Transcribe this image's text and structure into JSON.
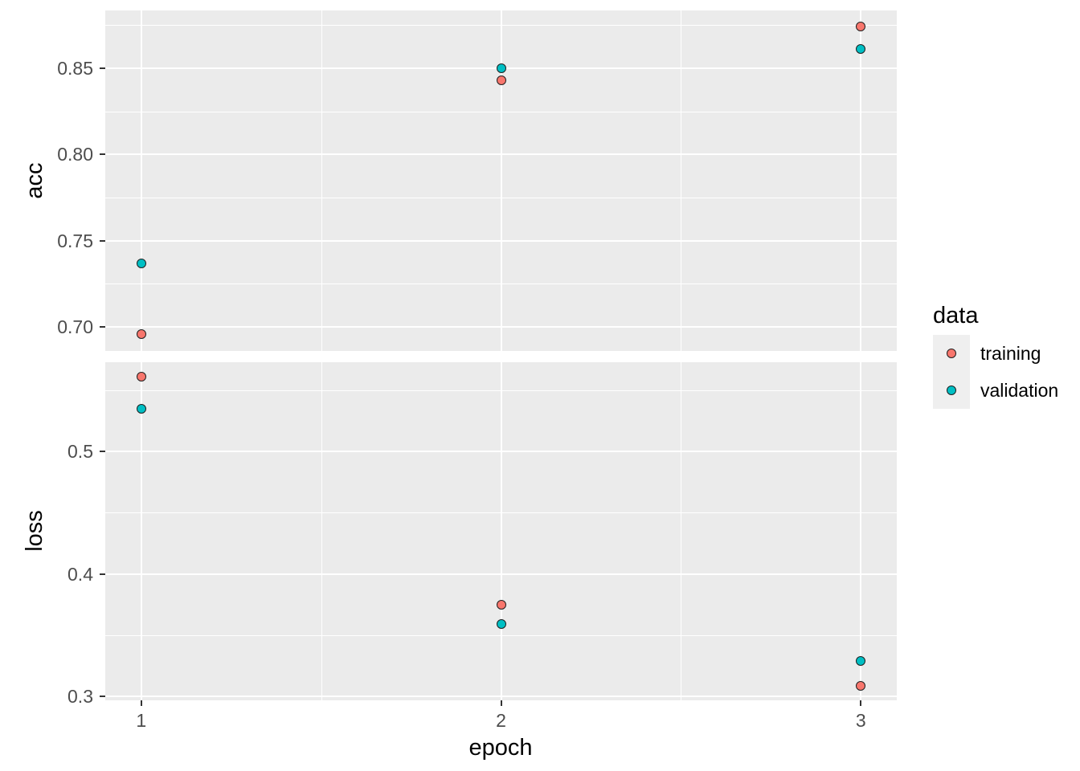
{
  "figure": {
    "background": "#ffffff",
    "panel_background": "#EBEBEB",
    "grid_color": "#FFFFFF",
    "axis_text_color": "#4D4D4D",
    "axis_title_color": "#000000",
    "tick_mark_color": "#333333",
    "point_outline_color": "#1f1f1f",
    "legend_key_background": "#EFEFEF"
  },
  "chart_data": {
    "type": "scatter",
    "title": "",
    "xlabel": "epoch",
    "x": [
      1,
      2,
      3
    ],
    "x_tick_labels": [
      "1",
      "2",
      "3"
    ],
    "xlim": [
      0.9,
      3.1
    ],
    "x_minor_ticks": [
      1.5,
      2.5
    ],
    "grid": true,
    "legend": {
      "title": "data",
      "position": "right",
      "entries": [
        {
          "label": "training",
          "color": "#F8766D"
        },
        {
          "label": "validation",
          "color": "#00BFC4"
        }
      ]
    },
    "facets": [
      {
        "label": "acc",
        "ylim": [
          0.686,
          0.8835
        ],
        "y_ticks": [
          0.7,
          0.75,
          0.8,
          0.85
        ],
        "y_tick_labels": [
          "0.70",
          "0.75",
          "0.80",
          "0.85"
        ],
        "y_minor_ticks": [
          0.725,
          0.775,
          0.825,
          0.875
        ],
        "series": [
          {
            "name": "training",
            "values": [
              0.696,
              0.843,
              0.874
            ]
          },
          {
            "name": "validation",
            "values": [
              0.737,
              0.85,
              0.861
            ]
          }
        ]
      },
      {
        "label": "loss",
        "ylim": [
          0.297,
          0.5727
        ],
        "y_ticks": [
          0.3,
          0.4,
          0.5
        ],
        "y_tick_labels": [
          "0.3",
          "0.4",
          "0.5"
        ],
        "y_minor_ticks": [
          0.35,
          0.45,
          0.55
        ],
        "series": [
          {
            "name": "training",
            "values": [
              0.561,
              0.375,
              0.309
            ]
          },
          {
            "name": "validation",
            "values": [
              0.535,
              0.359,
              0.329
            ]
          }
        ]
      }
    ]
  }
}
